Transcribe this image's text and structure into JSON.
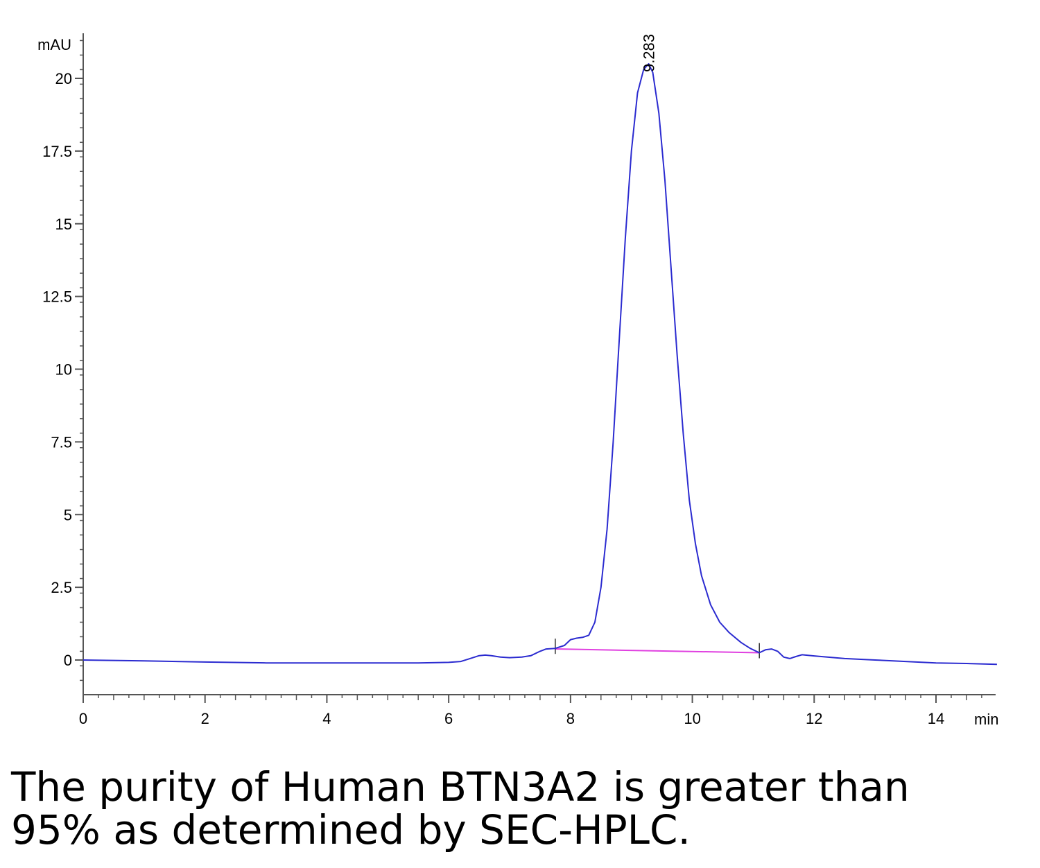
{
  "chart_data": {
    "type": "line",
    "ylabel": "mAU",
    "xlabel": "min",
    "xlim": [
      0,
      15
    ],
    "ylim": [
      -1.2,
      21.5
    ],
    "x_ticks": [
      0,
      2,
      4,
      6,
      8,
      10,
      12,
      14
    ],
    "x_tick_labels": [
      "0",
      "2",
      "4",
      "6",
      "8",
      "10",
      "12",
      "14"
    ],
    "y_ticks": [
      0,
      2.5,
      5,
      7.5,
      10,
      12.5,
      15,
      17.5,
      20
    ],
    "y_tick_labels": [
      "0",
      "2.5",
      "5",
      "7.5",
      "10",
      "12.5",
      "15",
      "17.5",
      "20"
    ],
    "grid": false,
    "colors": {
      "trace": "#2b2bd0",
      "baseline": "#e040e0",
      "axis": "#555555"
    },
    "series": [
      {
        "x": [
          0,
          1,
          2,
          3,
          4,
          5,
          5.5,
          6,
          6.2,
          6.35,
          6.5,
          6.6,
          6.7,
          6.85,
          7.0,
          7.2,
          7.35,
          7.5,
          7.6,
          7.75,
          7.9,
          8.0,
          8.1,
          8.2,
          8.3,
          8.4,
          8.5,
          8.6,
          8.7,
          8.8,
          8.9,
          9.0,
          9.1,
          9.2,
          9.283,
          9.35,
          9.45,
          9.55,
          9.65,
          9.75,
          9.85,
          9.95,
          10.05,
          10.15,
          10.3,
          10.45,
          10.6,
          10.8,
          10.95,
          11.1,
          11.2,
          11.3,
          11.4,
          11.5,
          11.6,
          11.7,
          11.8,
          12.0,
          12.5,
          13.0,
          13.5,
          14.0,
          14.5,
          15.0
        ],
        "y": [
          0.0,
          -0.03,
          -0.07,
          -0.1,
          -0.1,
          -0.1,
          -0.1,
          -0.08,
          -0.05,
          0.05,
          0.15,
          0.17,
          0.15,
          0.1,
          0.08,
          0.1,
          0.15,
          0.3,
          0.38,
          0.4,
          0.5,
          0.7,
          0.75,
          0.78,
          0.85,
          1.3,
          2.5,
          4.5,
          7.5,
          11.0,
          14.5,
          17.5,
          19.5,
          20.3,
          20.5,
          20.2,
          18.8,
          16.5,
          13.5,
          10.5,
          7.8,
          5.5,
          4.0,
          2.9,
          1.9,
          1.3,
          0.95,
          0.6,
          0.4,
          0.25,
          0.35,
          0.38,
          0.3,
          0.1,
          0.05,
          0.12,
          0.18,
          0.14,
          0.05,
          0.0,
          -0.05,
          -0.1,
          -0.12,
          -0.15
        ]
      }
    ],
    "baseline": {
      "x": [
        7.75,
        11.1
      ],
      "y": [
        0.38,
        0.25
      ]
    },
    "peak_markers": [
      7.75,
      11.1
    ],
    "annotations": [
      {
        "text": "9.283",
        "x": 9.283,
        "y": 20.5
      }
    ]
  },
  "caption": {
    "line1": "The purity of Human BTN3A2 is greater than",
    "line2": "95% as determined by SEC-HPLC."
  }
}
